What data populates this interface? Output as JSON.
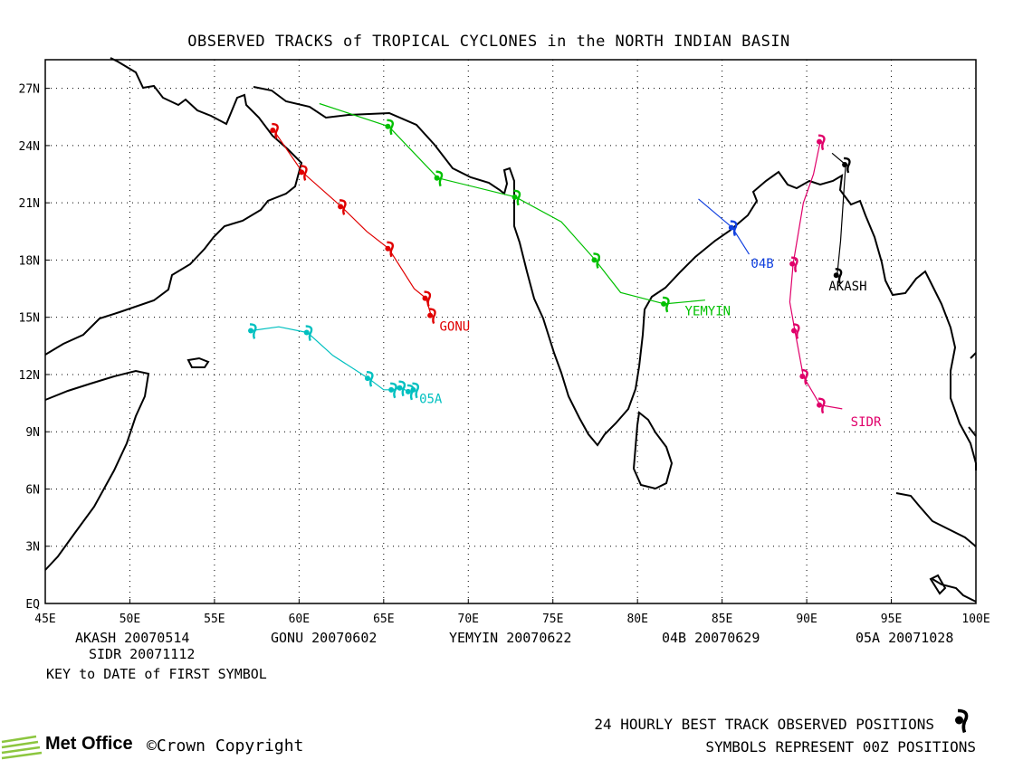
{
  "title": "OBSERVED TRACKS of TROPICAL CYCLONES in the NORTH INDIAN BASIN",
  "axes": {
    "lon_ticks": [
      "45E",
      "50E",
      "55E",
      "60E",
      "65E",
      "70E",
      "75E",
      "80E",
      "85E",
      "90E",
      "95E",
      "100E"
    ],
    "lat_ticks": [
      "EQ",
      "3N",
      "6N",
      "9N",
      "12N",
      "15N",
      "18N",
      "21N",
      "24N",
      "27N"
    ],
    "lon_range": [
      45,
      100
    ],
    "lat_range": [
      0,
      28.5
    ],
    "grid": true
  },
  "storms": [
    {
      "name": "GONU",
      "color": "#e00000",
      "label_pos": [
        68.3,
        14.3
      ],
      "track": [
        [
          58.5,
          24.8
        ],
        [
          60.2,
          22.6
        ],
        [
          62.5,
          20.8
        ],
        [
          64.0,
          19.5
        ],
        [
          65.3,
          18.6
        ],
        [
          66.8,
          16.5
        ],
        [
          67.5,
          16.0
        ],
        [
          67.8,
          15.1
        ]
      ],
      "symbols": [
        [
          58.5,
          24.8
        ],
        [
          60.2,
          22.6
        ],
        [
          62.5,
          20.8
        ],
        [
          65.3,
          18.6
        ],
        [
          67.5,
          16.0
        ],
        [
          67.8,
          15.1
        ]
      ]
    },
    {
      "name": "YEMYIN",
      "color": "#00c000",
      "label_pos": [
        82.8,
        15.1
      ],
      "track": [
        [
          61.2,
          26.2
        ],
        [
          65.3,
          25.0
        ],
        [
          68.2,
          22.3
        ],
        [
          72.8,
          21.3
        ],
        [
          75.5,
          20.0
        ],
        [
          77.5,
          18.0
        ],
        [
          79.0,
          16.3
        ],
        [
          81.6,
          15.7
        ],
        [
          84.0,
          15.9
        ]
      ],
      "symbols": [
        [
          65.3,
          25.0
        ],
        [
          68.2,
          22.3
        ],
        [
          72.8,
          21.3
        ],
        [
          77.5,
          18.0
        ],
        [
          81.6,
          15.7
        ]
      ]
    },
    {
      "name": "04B",
      "color": "#1040e0",
      "label_pos": [
        86.7,
        17.6
      ],
      "track": [
        [
          83.6,
          21.2
        ],
        [
          85.6,
          19.7
        ],
        [
          86.6,
          18.3
        ]
      ],
      "symbols": [
        [
          85.6,
          19.7
        ]
      ]
    },
    {
      "name": "AKASH",
      "color": "#000000",
      "label_pos": [
        91.3,
        16.4
      ],
      "track": [
        [
          91.8,
          17.2
        ],
        [
          92.0,
          19.0
        ],
        [
          92.3,
          23.0
        ],
        [
          91.5,
          23.6
        ]
      ],
      "symbols": [
        [
          91.8,
          17.2
        ],
        [
          92.3,
          23.0
        ]
      ]
    },
    {
      "name": "SIDR",
      "color": "#e0006a",
      "label_pos": [
        92.6,
        9.3
      ],
      "track": [
        [
          92.1,
          10.2
        ],
        [
          90.8,
          10.4
        ],
        [
          89.8,
          11.9
        ],
        [
          89.3,
          14.3
        ],
        [
          89.0,
          15.8
        ],
        [
          89.2,
          17.8
        ],
        [
          89.8,
          21.0
        ],
        [
          90.4,
          22.5
        ],
        [
          90.8,
          24.2
        ]
      ],
      "symbols": [
        [
          90.8,
          10.4
        ],
        [
          89.8,
          11.9
        ],
        [
          89.3,
          14.3
        ],
        [
          89.2,
          17.8
        ],
        [
          90.8,
          24.2
        ]
      ]
    },
    {
      "name": "05A",
      "color": "#00c0c0",
      "label_pos": [
        67.1,
        10.5
      ],
      "track": [
        [
          57.2,
          14.3
        ],
        [
          58.8,
          14.5
        ],
        [
          60.5,
          14.2
        ],
        [
          62.0,
          13.0
        ],
        [
          64.1,
          11.8
        ],
        [
          65.0,
          11.2
        ],
        [
          65.5,
          11.2
        ],
        [
          66.0,
          11.3
        ],
        [
          66.5,
          11.1
        ],
        [
          66.8,
          11.2
        ]
      ],
      "symbols": [
        [
          57.2,
          14.3
        ],
        [
          60.5,
          14.2
        ],
        [
          64.1,
          11.8
        ],
        [
          65.5,
          11.2
        ],
        [
          66.0,
          11.3
        ],
        [
          66.5,
          11.1
        ],
        [
          66.8,
          11.2
        ]
      ]
    }
  ],
  "key_labels": {
    "akash": "AKASH 20070514",
    "gonu": "GONU 20070602",
    "yemyin": "YEMYIN 20070622",
    "b04": "04B 20070629",
    "a05": "05A 20071028",
    "sidr": "SIDR 20071112",
    "key_title": "KEY to DATE of FIRST SYMBOL"
  },
  "footer": {
    "logo": "Met Office",
    "copyright": "©Crown Copyright",
    "note1": "24 HOURLY BEST TRACK OBSERVED POSITIONS",
    "note2": "SYMBOLS REPRESENT 00Z POSITIONS"
  },
  "colors": {
    "coast": "#000000",
    "grid": "#000000",
    "logo_green": "#8cc63f"
  }
}
